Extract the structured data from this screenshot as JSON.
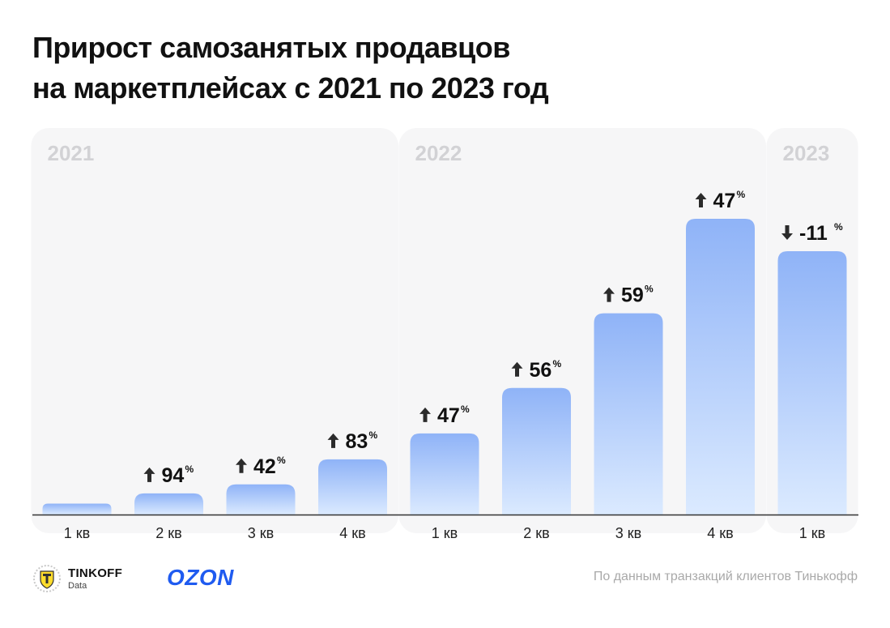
{
  "title_line1": "Прирост самозанятых продавцов",
  "title_line2": "на маркетплейсах с 2021 по 2023 год",
  "chart_data": {
    "type": "bar",
    "title": "Прирост самозанятых продавцов на маркетплейсах с 2021 по 2023 год",
    "groups": [
      {
        "year": "2021",
        "categories": [
          "1 кв",
          "2 кв",
          "3 кв",
          "4 кв"
        ]
      },
      {
        "year": "2022",
        "categories": [
          "1 кв",
          "2 кв",
          "3 кв",
          "4 кв"
        ]
      },
      {
        "year": "2023",
        "categories": [
          "1 кв"
        ]
      }
    ],
    "categories": [
      "1 кв",
      "2 кв",
      "3 кв",
      "4 кв",
      "1 кв",
      "2 кв",
      "3 кв",
      "4 кв",
      "1 кв"
    ],
    "values": [
      1.0,
      1.94,
      2.76,
      5.05,
      7.42,
      11.58,
      18.41,
      27.06,
      24.09
    ],
    "labels": [
      "",
      "94",
      "42",
      "83",
      "47",
      "56",
      "59",
      "47",
      "-11"
    ],
    "directions": [
      "",
      "up",
      "up",
      "up",
      "up",
      "up",
      "up",
      "up",
      "down"
    ],
    "percent_sign": "%",
    "ylim": [
      0,
      29
    ],
    "colors": {
      "bar_top": "#8fb3f7",
      "bar_bottom": "#dbeaff",
      "panel": "#f6f6f7",
      "year_label": "#d2d2d5"
    }
  },
  "footer": {
    "tinkoff_name": "TINKOFF",
    "tinkoff_sub": "Data",
    "ozon": "OZON",
    "source": "По данным транзакций клиентов Тинькофф",
    "tinkoff_icon": "tinkoff-shield-icon"
  }
}
